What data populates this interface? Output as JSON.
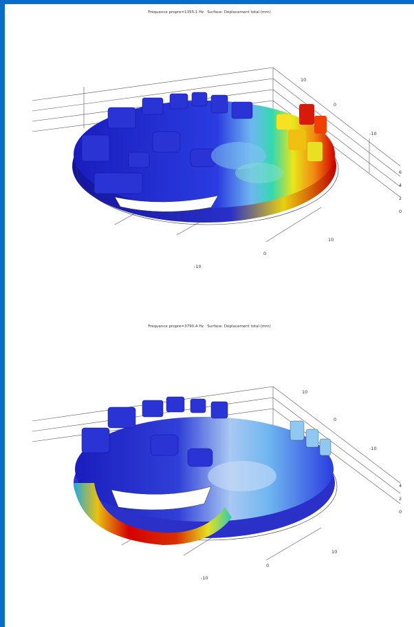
{
  "colors": {
    "frame": "#0a6cc6",
    "background": "#ffffff",
    "colormap_low": "#1a1dbd",
    "colormap_high": "#d40000"
  },
  "plots": [
    {
      "title": "Fréquence propre=1355.1 Hz   Surface: Déplacement total (mm)",
      "ticks": {
        "y1": "10",
        "y2": "0",
        "y3": "-10",
        "z1": "6",
        "z2": "4",
        "z3": "2",
        "z4": "0",
        "x1": "10",
        "x2": "0",
        "x3": "-10"
      }
    },
    {
      "title": "Fréquence propre=3790.4 Hz   Surface: Déplacement total (mm)",
      "ticks": {
        "y1": "10",
        "y2": "0",
        "y3": "-10",
        "z1": "4",
        "z2": "2",
        "z3": "0",
        "x1": "10",
        "x2": "0",
        "x3": "-10"
      }
    }
  ]
}
